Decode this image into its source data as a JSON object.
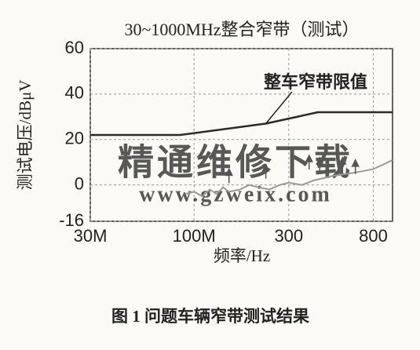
{
  "chart_data": {
    "type": "line",
    "title": "30~1000MHz整合窄带（测试）",
    "y_label": "测试电压/dBμV",
    "x_label": "频率/Hz",
    "caption": "图 1   问题车辆窄带测试结果",
    "watermark": "精通维修下载",
    "watermark_url": "www.gzweix.com",
    "log_x": true,
    "grid": true,
    "xlim": [
      30,
      1000
    ],
    "xticks": [
      {
        "value": 30,
        "label": "30M"
      },
      {
        "value": 100,
        "label": "100M"
      },
      {
        "value": 300,
        "label": "300"
      },
      {
        "value": 800,
        "label": "800"
      }
    ],
    "ylim": [
      -16,
      60
    ],
    "yticks": [
      -16,
      0,
      20,
      40,
      60
    ],
    "series": [
      {
        "name": "整车窄带限值",
        "color": "#2a2a2a",
        "x": [
          30,
          85,
          230,
          420,
          1000
        ],
        "values": [
          22,
          22,
          27,
          32,
          32
        ]
      },
      {
        "color": "#9a9a9a",
        "x": [
          90,
          100,
          110,
          120,
          130,
          140,
          150,
          170,
          190,
          210,
          240,
          270,
          300,
          350,
          400,
          450,
          500,
          600,
          700,
          800,
          900,
          1000
        ],
        "values": [
          -4,
          -3,
          -5,
          -2,
          -4,
          -1,
          -3,
          -2,
          0,
          -1,
          -2,
          0,
          1,
          0,
          2,
          3,
          4,
          5,
          6,
          7,
          9,
          11
        ]
      }
    ],
    "peaks": {
      "color": "#555555",
      "x": [
        150,
        230,
        380,
        430,
        560,
        650
      ],
      "values": [
        7,
        9,
        13,
        12,
        12,
        11
      ]
    }
  }
}
